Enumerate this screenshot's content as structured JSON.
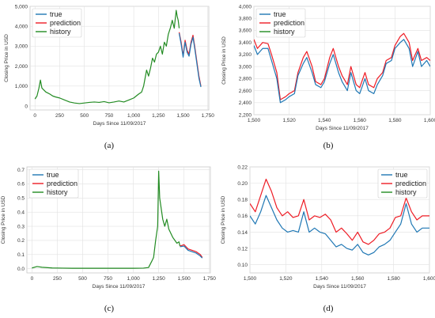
{
  "colors": {
    "true": "#1f77b4",
    "prediction": "#ee1c25",
    "history": "#228b22",
    "grid": "#e1e1e1",
    "frame": "#c8c8c8"
  },
  "chart_data": [
    {
      "id": "a",
      "type": "line",
      "caption": "(a)",
      "xlabel": "Days Since 11/09/2017",
      "ylabel": "Closing Price in USD",
      "xlim": [
        -50,
        1760
      ],
      "ylim": [
        -200,
        5000
      ],
      "xticks": [
        0,
        250,
        500,
        750,
        1000,
        1250,
        1500,
        1750
      ],
      "xtick_labels": [
        "0",
        "250",
        "500",
        "750",
        "1,000",
        "1,250",
        "1,500",
        "1,750"
      ],
      "yticks": [
        0,
        1000,
        2000,
        3000,
        4000,
        5000
      ],
      "ytick_labels": [
        "0",
        "1,000",
        "2,000",
        "3,000",
        "4,000",
        "5,000"
      ],
      "legend": {
        "position": "top-left",
        "entries": [
          "true",
          "prediction",
          "history"
        ]
      },
      "grid": true,
      "series": [
        {
          "name": "history",
          "color_key": "history",
          "x": [
            0,
            20,
            40,
            55,
            70,
            90,
            110,
            130,
            150,
            180,
            210,
            250,
            300,
            350,
            400,
            450,
            500,
            550,
            600,
            650,
            700,
            750,
            800,
            850,
            900,
            950,
            1000,
            1050,
            1080,
            1100,
            1130,
            1150,
            1170,
            1190,
            1210,
            1230,
            1250,
            1270,
            1290,
            1310,
            1330,
            1350,
            1370,
            1390,
            1410,
            1430,
            1440,
            1450,
            1460
          ],
          "y": [
            350,
            500,
            900,
            1300,
            900,
            800,
            700,
            650,
            600,
            500,
            450,
            400,
            300,
            200,
            150,
            120,
            150,
            180,
            200,
            180,
            220,
            160,
            200,
            250,
            200,
            300,
            400,
            600,
            700,
            1000,
            1800,
            1500,
            1900,
            2400,
            2200,
            2600,
            2700,
            3000,
            2600,
            3200,
            3000,
            3600,
            3900,
            4300,
            3900,
            4800,
            4500,
            4300,
            3900
          ]
        },
        {
          "name": "prediction",
          "color_key": "prediction",
          "x": [
            1460,
            1480,
            1500,
            1520,
            1540,
            1560,
            1580,
            1600,
            1620,
            1640,
            1660,
            1680
          ],
          "y": [
            3700,
            3200,
            2500,
            3300,
            2800,
            2600,
            3200,
            3550,
            2900,
            2200,
            1500,
            1000
          ]
        },
        {
          "name": "true",
          "color_key": "true",
          "x": [
            1460,
            1480,
            1500,
            1520,
            1540,
            1560,
            1580,
            1600,
            1620,
            1640,
            1660,
            1680
          ],
          "y": [
            3650,
            3100,
            2450,
            3200,
            2700,
            2500,
            3100,
            3450,
            2800,
            2100,
            1400,
            950
          ]
        }
      ]
    },
    {
      "id": "b",
      "type": "line",
      "caption": "(b)",
      "xlabel": "Days Since 11/09/2017",
      "ylabel": "Closing Price in USD",
      "xlim": [
        1500,
        1600
      ],
      "ylim": [
        2200,
        4000
      ],
      "xticks": [
        1500,
        1520,
        1540,
        1560,
        1580,
        1600
      ],
      "xtick_labels": [
        "1,500",
        "1,520",
        "1,540",
        "1,560",
        "1,580",
        "1,600"
      ],
      "yticks": [
        2200,
        2400,
        2600,
        2800,
        3000,
        3200,
        3400,
        3600,
        3800,
        4000
      ],
      "ytick_labels": [
        "2,200",
        "2,400",
        "2,600",
        "2,800",
        "3,000",
        "3,200",
        "3,400",
        "3,600",
        "3,800",
        "4,000"
      ],
      "legend": {
        "position": "top-left",
        "entries": [
          "true",
          "prediction",
          "history"
        ]
      },
      "grid": true,
      "series": [
        {
          "name": "prediction",
          "color_key": "prediction",
          "x": [
            1500,
            1502,
            1505,
            1508,
            1510,
            1513,
            1515,
            1518,
            1520,
            1523,
            1525,
            1528,
            1530,
            1533,
            1535,
            1538,
            1540,
            1543,
            1545,
            1548,
            1550,
            1553,
            1555,
            1558,
            1560,
            1563,
            1565,
            1568,
            1570,
            1573,
            1575,
            1578,
            1580,
            1583,
            1585,
            1588,
            1590,
            1593,
            1595,
            1598,
            1600
          ],
          "y": [
            3450,
            3300,
            3400,
            3380,
            3200,
            2900,
            2450,
            2500,
            2550,
            2600,
            2900,
            3150,
            3250,
            3000,
            2750,
            2700,
            2800,
            3150,
            3300,
            3000,
            2850,
            2700,
            3000,
            2700,
            2650,
            2900,
            2700,
            2650,
            2800,
            2900,
            3100,
            3150,
            3350,
            3500,
            3550,
            3400,
            3100,
            3300,
            3100,
            3150,
            3100
          ]
        },
        {
          "name": "true",
          "color_key": "true",
          "x": [
            1500,
            1502,
            1505,
            1508,
            1510,
            1513,
            1515,
            1518,
            1520,
            1523,
            1525,
            1528,
            1530,
            1533,
            1535,
            1538,
            1540,
            1543,
            1545,
            1548,
            1550,
            1553,
            1555,
            1558,
            1560,
            1563,
            1565,
            1568,
            1570,
            1573,
            1575,
            1578,
            1580,
            1583,
            1585,
            1588,
            1590,
            1593,
            1595,
            1598,
            1600
          ],
          "y": [
            3350,
            3200,
            3300,
            3300,
            3100,
            2800,
            2400,
            2450,
            2500,
            2550,
            2850,
            3050,
            3150,
            2900,
            2700,
            2650,
            2750,
            3050,
            3200,
            2900,
            2750,
            2600,
            2900,
            2600,
            2550,
            2800,
            2600,
            2550,
            2700,
            2850,
            3050,
            3100,
            3300,
            3400,
            3450,
            3300,
            3000,
            3250,
            3000,
            3100,
            3000
          ]
        }
      ]
    },
    {
      "id": "c",
      "type": "line",
      "caption": "(c)",
      "xlabel": "Days Since 11/09/2017",
      "ylabel": "Closing Price in USD",
      "xlim": [
        -50,
        1760
      ],
      "ylim": [
        -0.03,
        0.72
      ],
      "xticks": [
        0,
        250,
        500,
        750,
        1000,
        1250,
        1500,
        1750
      ],
      "xtick_labels": [
        "0",
        "250",
        "500",
        "750",
        "1,000",
        "1,250",
        "1,500",
        "1,750"
      ],
      "yticks": [
        0.0,
        0.1,
        0.2,
        0.3,
        0.4,
        0.5,
        0.6,
        0.7
      ],
      "ytick_labels": [
        "0.0",
        "0.1",
        "0.2",
        "0.3",
        "0.4",
        "0.5",
        "0.6",
        "0.7"
      ],
      "legend": {
        "position": "top-left",
        "entries": [
          "true",
          "prediction",
          "history"
        ]
      },
      "grid": true,
      "series": [
        {
          "name": "history",
          "color_key": "history",
          "x": [
            0,
            50,
            100,
            200,
            300,
            400,
            500,
            600,
            700,
            800,
            900,
            1000,
            1100,
            1150,
            1180,
            1200,
            1220,
            1240,
            1250,
            1260,
            1270,
            1290,
            1310,
            1330,
            1350,
            1370,
            1390,
            1410,
            1430,
            1450,
            1460
          ],
          "y": [
            0.005,
            0.015,
            0.01,
            0.005,
            0.004,
            0.003,
            0.003,
            0.003,
            0.003,
            0.003,
            0.003,
            0.003,
            0.004,
            0.008,
            0.05,
            0.08,
            0.2,
            0.3,
            0.69,
            0.5,
            0.45,
            0.35,
            0.3,
            0.35,
            0.28,
            0.25,
            0.22,
            0.2,
            0.18,
            0.19,
            0.16
          ]
        },
        {
          "name": "prediction",
          "color_key": "prediction",
          "x": [
            1460,
            1500,
            1540,
            1580,
            1620,
            1660,
            1680
          ],
          "y": [
            0.16,
            0.17,
            0.14,
            0.13,
            0.12,
            0.1,
            0.08
          ]
        },
        {
          "name": "true",
          "color_key": "true",
          "x": [
            1460,
            1500,
            1540,
            1580,
            1620,
            1660,
            1680
          ],
          "y": [
            0.155,
            0.16,
            0.13,
            0.12,
            0.11,
            0.09,
            0.075
          ]
        }
      ]
    },
    {
      "id": "d",
      "type": "line",
      "caption": "(d)",
      "xlabel": "Days Since 11/09/2017",
      "ylabel": "Closing Price in USD",
      "xlim": [
        1500,
        1600
      ],
      "ylim": [
        0.09,
        0.22
      ],
      "xticks": [
        1500,
        1520,
        1540,
        1560,
        1580,
        1600
      ],
      "xtick_labels": [
        "1,500",
        "1,520",
        "1,540",
        "1,560",
        "1,580",
        "1,600"
      ],
      "yticks": [
        0.1,
        0.12,
        0.14,
        0.16,
        0.18,
        0.2,
        0.22
      ],
      "ytick_labels": [
        "0.10",
        "0.12",
        "0.14",
        "0.16",
        "0.18",
        "0.20",
        "0.22"
      ],
      "legend": {
        "position": "top-right",
        "entries": [
          "true",
          "prediction",
          "history"
        ]
      },
      "grid": true,
      "series": [
        {
          "name": "prediction",
          "color_key": "prediction",
          "x": [
            1500,
            1503,
            1506,
            1509,
            1512,
            1515,
            1518,
            1521,
            1524,
            1527,
            1530,
            1533,
            1536,
            1539,
            1542,
            1545,
            1548,
            1551,
            1554,
            1557,
            1560,
            1563,
            1566,
            1569,
            1572,
            1575,
            1578,
            1581,
            1584,
            1587,
            1590,
            1593,
            1596,
            1600
          ],
          "y": [
            0.175,
            0.165,
            0.185,
            0.205,
            0.19,
            0.17,
            0.16,
            0.165,
            0.158,
            0.16,
            0.18,
            0.155,
            0.16,
            0.158,
            0.162,
            0.155,
            0.14,
            0.145,
            0.138,
            0.13,
            0.14,
            0.128,
            0.125,
            0.13,
            0.138,
            0.14,
            0.145,
            0.158,
            0.16,
            0.182,
            0.165,
            0.155,
            0.16,
            0.16
          ]
        },
        {
          "name": "true",
          "color_key": "true",
          "x": [
            1500,
            1503,
            1506,
            1509,
            1512,
            1515,
            1518,
            1521,
            1524,
            1527,
            1530,
            1533,
            1536,
            1539,
            1542,
            1545,
            1548,
            1551,
            1554,
            1557,
            1560,
            1563,
            1566,
            1569,
            1572,
            1575,
            1578,
            1581,
            1584,
            1587,
            1590,
            1593,
            1596,
            1600
          ],
          "y": [
            0.16,
            0.15,
            0.165,
            0.185,
            0.17,
            0.155,
            0.145,
            0.14,
            0.142,
            0.14,
            0.165,
            0.14,
            0.145,
            0.14,
            0.138,
            0.13,
            0.122,
            0.125,
            0.12,
            0.118,
            0.125,
            0.115,
            0.112,
            0.115,
            0.122,
            0.125,
            0.13,
            0.14,
            0.15,
            0.175,
            0.15,
            0.14,
            0.145,
            0.145
          ]
        }
      ]
    }
  ]
}
